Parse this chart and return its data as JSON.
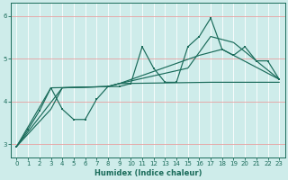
{
  "xlabel": "Humidex (Indice chaleur)",
  "bg_color": "#ceecea",
  "line_color": "#1a6b5a",
  "xlim": [
    -0.5,
    23.5
  ],
  "ylim": [
    2.7,
    6.3
  ],
  "yticks": [
    3,
    4,
    5,
    6
  ],
  "xticks": [
    0,
    1,
    2,
    3,
    4,
    5,
    6,
    7,
    8,
    9,
    10,
    11,
    12,
    13,
    14,
    15,
    16,
    17,
    18,
    19,
    20,
    21,
    22,
    23
  ],
  "series_main": [
    [
      0,
      2.95
    ],
    [
      1,
      3.35
    ],
    [
      2,
      3.78
    ],
    [
      3,
      4.32
    ],
    [
      4,
      3.82
    ],
    [
      5,
      3.58
    ],
    [
      6,
      3.58
    ],
    [
      7,
      4.05
    ],
    [
      8,
      4.35
    ],
    [
      9,
      4.35
    ],
    [
      10,
      4.42
    ],
    [
      11,
      5.28
    ],
    [
      12,
      4.78
    ],
    [
      13,
      4.45
    ],
    [
      14,
      4.45
    ],
    [
      15,
      5.28
    ],
    [
      16,
      5.52
    ],
    [
      17,
      5.95
    ],
    [
      18,
      5.22
    ],
    [
      19,
      5.08
    ],
    [
      20,
      5.28
    ],
    [
      21,
      4.95
    ],
    [
      22,
      4.95
    ],
    [
      23,
      4.52
    ]
  ],
  "series_line2": [
    [
      0,
      2.95
    ],
    [
      4,
      4.32
    ],
    [
      8,
      4.35
    ],
    [
      9,
      4.42
    ],
    [
      16,
      5.08
    ],
    [
      18,
      5.22
    ],
    [
      23,
      4.52
    ]
  ],
  "series_line3": [
    [
      0,
      2.95
    ],
    [
      3,
      4.32
    ],
    [
      8,
      4.35
    ],
    [
      9,
      4.42
    ],
    [
      15,
      4.78
    ],
    [
      17,
      5.52
    ],
    [
      19,
      5.38
    ],
    [
      23,
      4.52
    ]
  ],
  "series_line4": [
    [
      0,
      2.95
    ],
    [
      3,
      3.82
    ],
    [
      4,
      4.32
    ],
    [
      8,
      4.35
    ],
    [
      9,
      4.42
    ],
    [
      17,
      4.45
    ],
    [
      23,
      4.45
    ]
  ]
}
